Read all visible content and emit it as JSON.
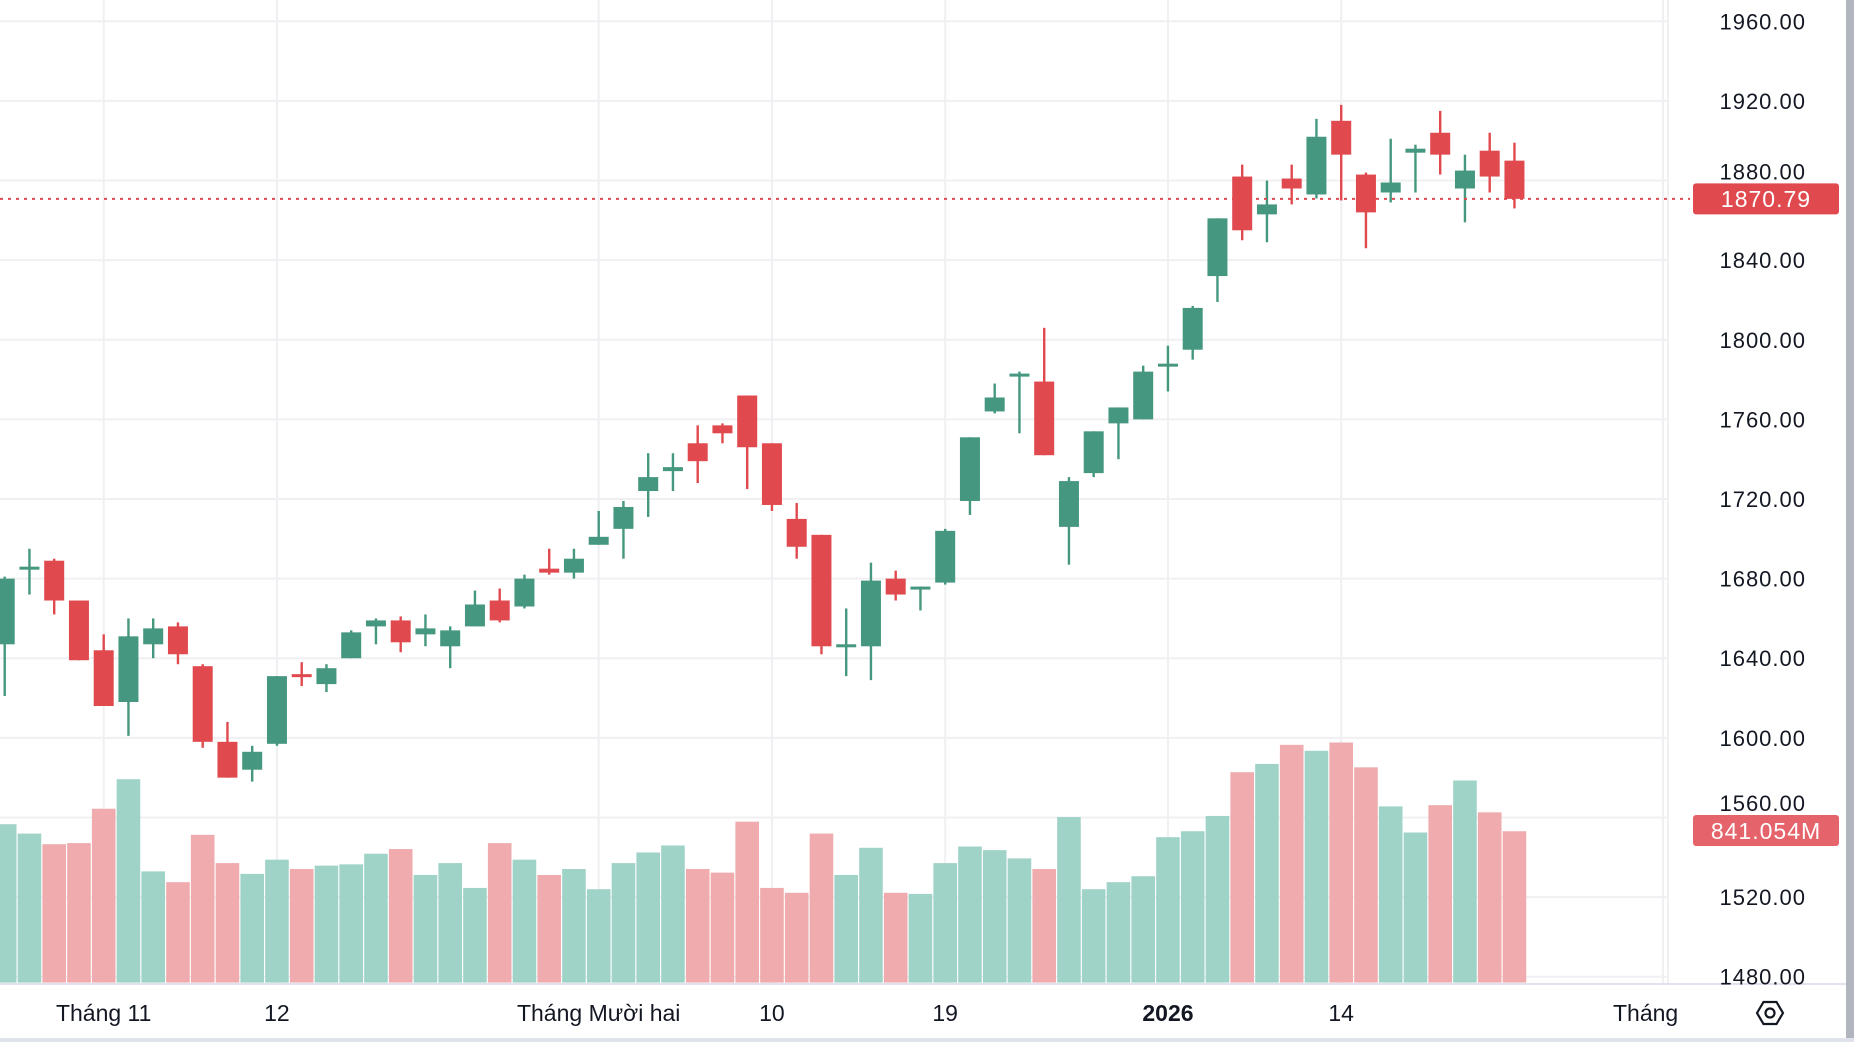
{
  "chart_data": {
    "type": "candlestick",
    "title": "",
    "colors": {
      "up": "#45977f",
      "down": "#e04a4f",
      "volume_up": "#a0d3c8",
      "volume_down": "#efabae",
      "last_price_label": "#e04a4f",
      "volume_label": "#e5636a"
    },
    "y_axis": {
      "ylim": [
        1480,
        1960
      ],
      "ticks": [
        "1960.00",
        "1920.00",
        "1880.00",
        "1840.00",
        "1800.00",
        "1760.00",
        "1720.00",
        "1680.00",
        "1640.00",
        "1600.00",
        "1560.00",
        "1520.00",
        "1480.00"
      ]
    },
    "x_axis": {
      "ticks": [
        {
          "label": "Tháng 11",
          "index": 4,
          "bold": false
        },
        {
          "label": "12",
          "index": 11,
          "bold": false
        },
        {
          "label": "Tháng Mười hai",
          "index": 24,
          "bold": false
        },
        {
          "label": "10",
          "index": 31,
          "bold": false
        },
        {
          "label": "19",
          "index": 38,
          "bold": false
        },
        {
          "label": "2026",
          "index": 47,
          "bold": true
        },
        {
          "label": "14",
          "index": 54,
          "bold": false
        },
        {
          "label": "Tháng",
          "index": 67,
          "bold": false
        }
      ]
    },
    "last_price": "1870.79",
    "last_volume": "841.054M",
    "candles": [
      [
        1647,
        1681,
        1621,
        1680
      ],
      [
        1686,
        1695,
        1672,
        1686
      ],
      [
        1689,
        1690,
        1662,
        1669
      ],
      [
        1669,
        1669,
        1639,
        1639
      ],
      [
        1644,
        1652,
        1616,
        1616
      ],
      [
        1618,
        1660,
        1601,
        1651
      ],
      [
        1647,
        1660,
        1640,
        1655
      ],
      [
        1656,
        1658,
        1637,
        1642
      ],
      [
        1636,
        1637,
        1595,
        1598
      ],
      [
        1598,
        1608,
        1580,
        1580
      ],
      [
        1584,
        1596,
        1578,
        1593
      ],
      [
        1597,
        1631,
        1596,
        1631
      ],
      [
        1632,
        1638,
        1626,
        1631
      ],
      [
        1627,
        1637,
        1623,
        1635
      ],
      [
        1640,
        1654,
        1640,
        1653
      ],
      [
        1656,
        1660,
        1647,
        1659
      ],
      [
        1659,
        1661,
        1643,
        1648
      ],
      [
        1652,
        1662,
        1646,
        1655
      ],
      [
        1646,
        1656,
        1635,
        1654
      ],
      [
        1656,
        1674,
        1656,
        1667
      ],
      [
        1669,
        1675,
        1658,
        1659
      ],
      [
        1666,
        1682,
        1665,
        1680
      ],
      [
        1685,
        1695,
        1682,
        1683
      ],
      [
        1683,
        1695,
        1680,
        1690
      ],
      [
        1697,
        1714,
        1697,
        1701
      ],
      [
        1705,
        1719,
        1690,
        1716
      ],
      [
        1724,
        1743,
        1711,
        1731
      ],
      [
        1734,
        1743,
        1724,
        1736
      ],
      [
        1748,
        1757,
        1728,
        1739
      ],
      [
        1757,
        1758,
        1748,
        1753
      ],
      [
        1772,
        1772,
        1725,
        1746
      ],
      [
        1748,
        1748,
        1714,
        1717
      ],
      [
        1710,
        1718,
        1690,
        1696
      ],
      [
        1702,
        1702,
        1642,
        1646
      ],
      [
        1646,
        1665,
        1631,
        1647
      ],
      [
        1646,
        1688,
        1629,
        1679
      ],
      [
        1680,
        1684,
        1669,
        1672
      ],
      [
        1675,
        1676,
        1664,
        1676
      ],
      [
        1678,
        1705,
        1677,
        1704
      ],
      [
        1719,
        1751,
        1712,
        1751
      ],
      [
        1764,
        1778,
        1763,
        1771
      ],
      [
        1782,
        1784,
        1753,
        1783
      ],
      [
        1779,
        1806,
        1742,
        1742
      ],
      [
        1706,
        1731,
        1687,
        1729
      ],
      [
        1733,
        1754,
        1731,
        1754
      ],
      [
        1758,
        1766,
        1740,
        1766
      ],
      [
        1760,
        1787,
        1760,
        1784
      ],
      [
        1787,
        1797,
        1774,
        1788
      ],
      [
        1795,
        1817,
        1790,
        1816
      ],
      [
        1832,
        1861,
        1819,
        1861
      ],
      [
        1882,
        1888,
        1850,
        1855
      ],
      [
        1863,
        1880,
        1849,
        1868
      ],
      [
        1881,
        1888,
        1868,
        1876
      ],
      [
        1873,
        1911,
        1871,
        1902
      ],
      [
        1910,
        1918,
        1870,
        1893
      ],
      [
        1883,
        1884,
        1846,
        1864
      ],
      [
        1874,
        1901,
        1869,
        1879
      ],
      [
        1894,
        1898,
        1874,
        1896
      ],
      [
        1904,
        1915,
        1883,
        1893
      ],
      [
        1876,
        1893,
        1859,
        1885
      ],
      [
        1895,
        1904,
        1874,
        1882
      ],
      [
        1890,
        1899,
        1866,
        1870.79
      ]
    ],
    "candle_format": [
      "open",
      "high",
      "low",
      "close"
    ],
    "volume_unit": "M",
    "volumes": [
      880,
      828,
      769,
      775,
      966,
      1130,
      618,
      558,
      821,
      664,
      604,
      683,
      631,
      650,
      657,
      716,
      742,
      598,
      664,
      526,
      775,
      683,
      598,
      631,
      519,
      664,
      723,
      762,
      631,
      611,
      894,
      526,
      499,
      828,
      598,
      749,
      499,
      493,
      664,
      756,
      736,
      690,
      631,
      920,
      519,
      558,
      591,
      808,
      841,
      926,
      1169,
      1215,
      1321,
      1288,
      1334,
      1196,
      979,
      834,
      986,
      1123,
      946,
      841.054
    ]
  },
  "toolbar": {
    "settings_icon": "gear-icon"
  }
}
